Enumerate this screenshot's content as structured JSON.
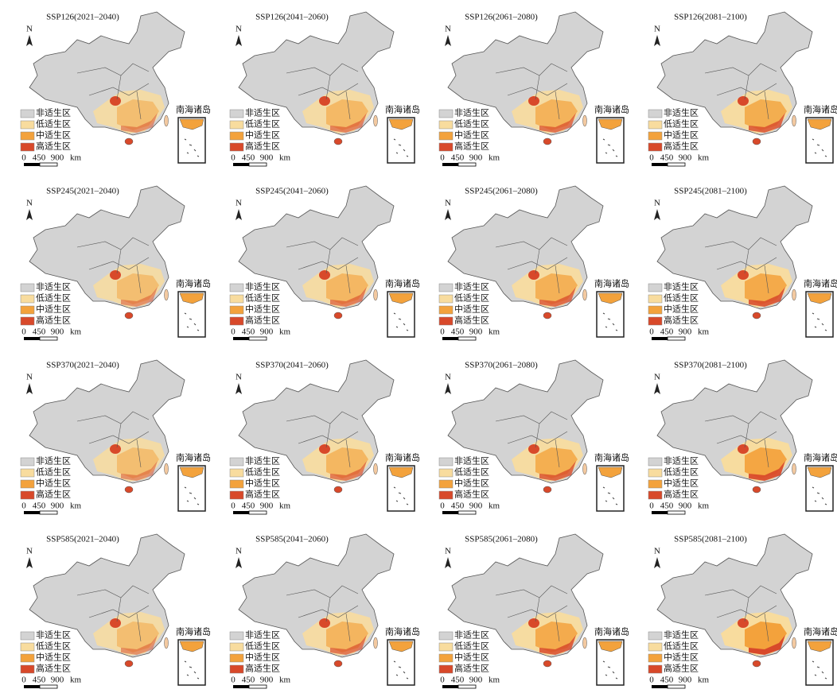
{
  "north": "N",
  "inset_label": "南海诸岛",
  "legend": {
    "items": [
      {
        "label": "非适生区",
        "color": "#d3d3d3"
      },
      {
        "label": "低适生区",
        "color": "#f8dc9e"
      },
      {
        "label": "中适生区",
        "color": "#f3a23c"
      },
      {
        "label": "高适生区",
        "color": "#d8492a"
      }
    ]
  },
  "scale": {
    "labels": [
      "0",
      "450",
      "900",
      "km"
    ]
  },
  "panels": [
    {
      "title": "SSP126(2021–2040)"
    },
    {
      "title": "SSP126(2041–2060)"
    },
    {
      "title": "SSP126(2061–2080)"
    },
    {
      "title": "SSP126(2081–2100)"
    },
    {
      "title": "SSP245(2021–2040)"
    },
    {
      "title": "SSP245(2041–2060)"
    },
    {
      "title": "SSP245(2061–2080)"
    },
    {
      "title": "SSP245(2081–2100)"
    },
    {
      "title": "SSP370(2021–2040)"
    },
    {
      "title": "SSP370(2041–2060)"
    },
    {
      "title": "SSP370(2061–2080)"
    },
    {
      "title": "SSP370(2081–2100)"
    },
    {
      "title": "SSP585(2021–2040)"
    },
    {
      "title": "SSP585(2041–2060)"
    },
    {
      "title": "SSP585(2061–2080)"
    },
    {
      "title": "SSP585(2081–2100)"
    }
  ]
}
